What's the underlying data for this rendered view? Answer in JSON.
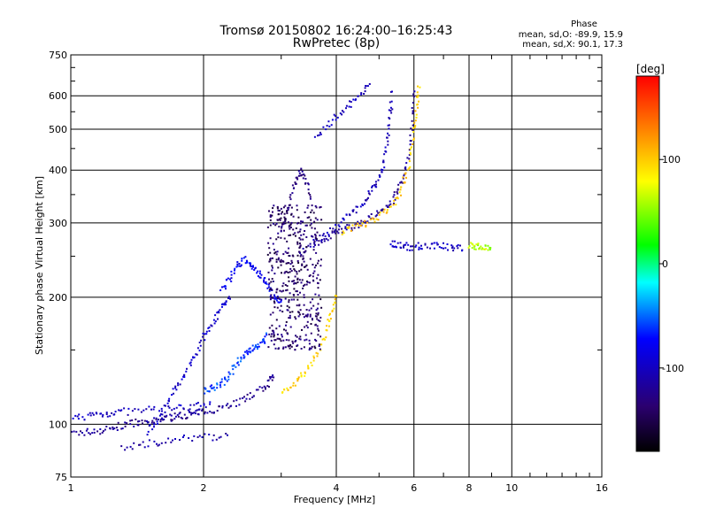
{
  "chart_data": {
    "type": "scatter",
    "title": "Tromsø 20150802 16:24:00–16:25:43",
    "subtitle": "RwPretec (8p)",
    "xlabel": "Frequency [MHz]",
    "ylabel": "Stationary phase Virtual Height [km]",
    "x_scale": "log",
    "y_scale": "log",
    "xlim": [
      1,
      16
    ],
    "ylim": [
      75,
      750
    ],
    "x_ticks": [
      1,
      2,
      4,
      6,
      8,
      10,
      16
    ],
    "x_tick_labels": [
      "1",
      "2",
      "4",
      "6",
      "8",
      "10",
      "16"
    ],
    "y_ticks": [
      75,
      100,
      200,
      300,
      400,
      500,
      600,
      750
    ],
    "y_tick_labels": [
      "75",
      "100",
      "200",
      "300",
      "400",
      "500",
      "600",
      "750"
    ],
    "grid": true,
    "colorbar": {
      "label": "[deg]",
      "range": [
        -180,
        180
      ],
      "ticks": [
        100,
        0,
        -100
      ],
      "tick_labels": [
        "100",
        "0",
        "-100"
      ],
      "stops": [
        "#000000",
        "#2b006f",
        "#0000ff",
        "#00ffff",
        "#00ff00",
        "#ffff00",
        "#ff8000",
        "#ff0000"
      ]
    },
    "legend": {
      "title": "Phase",
      "o_mode": "mean, sd,O: -89.9, 15.9",
      "x_mode": "mean, sd,X:  90.1, 17.3"
    },
    "traces": [
      {
        "name": "",
        "points": [
          [
            1.0,
            95
          ],
          [
            1.1,
            96
          ],
          [
            1.2,
            97
          ],
          [
            1.3,
            99
          ],
          [
            1.4,
            101
          ],
          [
            1.5,
            100
          ],
          [
            1.6,
            103
          ],
          [
            1.7,
            104
          ],
          [
            1.8,
            105
          ],
          [
            1.9,
            106
          ],
          [
            2.0,
            107
          ],
          [
            2.2,
            110
          ],
          [
            2.4,
            113
          ],
          [
            2.6,
            118
          ],
          [
            2.8,
            124
          ],
          [
            2.9,
            130
          ]
        ],
        "phase": -120
      },
      {
        "name": "",
        "points": [
          [
            1.0,
            103
          ],
          [
            1.1,
            105
          ],
          [
            1.2,
            106
          ],
          [
            1.3,
            107
          ],
          [
            1.5,
            108
          ],
          [
            1.7,
            109
          ],
          [
            1.9,
            110
          ],
          [
            2.1,
            111
          ]
        ],
        "phase": -100
      },
      {
        "name": "",
        "points": [
          [
            1.3,
            88
          ],
          [
            1.5,
            90
          ],
          [
            1.7,
            92
          ],
          [
            2.0,
            93
          ],
          [
            2.3,
            94
          ]
        ],
        "phase": -110
      },
      {
        "name": "",
        "points": [
          [
            1.5,
            96
          ],
          [
            1.6,
            105
          ],
          [
            1.7,
            118
          ],
          [
            1.8,
            130
          ],
          [
            1.9,
            145
          ],
          [
            2.0,
            160
          ],
          [
            2.1,
            175
          ],
          [
            2.2,
            190
          ],
          [
            2.3,
            200
          ]
        ],
        "phase": -95
      },
      {
        "name": "",
        "points": [
          [
            2.2,
            210
          ],
          [
            2.3,
            220
          ],
          [
            2.4,
            240
          ],
          [
            2.5,
            245
          ],
          [
            2.6,
            235
          ],
          [
            2.7,
            225
          ],
          [
            2.8,
            210
          ],
          [
            2.9,
            200
          ],
          [
            3.0,
            195
          ]
        ],
        "phase": -80
      },
      {
        "name": "",
        "points": [
          [
            2.0,
            120
          ],
          [
            2.1,
            122
          ],
          [
            2.2,
            125
          ],
          [
            2.3,
            132
          ],
          [
            2.4,
            140
          ],
          [
            2.5,
            148
          ],
          [
            2.6,
            152
          ],
          [
            2.7,
            155
          ],
          [
            2.8,
            162
          ]
        ],
        "phase": -60
      },
      {
        "name": "",
        "points": [
          [
            3.0,
            120
          ],
          [
            3.2,
            125
          ],
          [
            3.4,
            132
          ],
          [
            3.6,
            145
          ],
          [
            3.8,
            165
          ],
          [
            3.9,
            185
          ],
          [
            4.0,
            205
          ]
        ],
        "phase": 95
      },
      {
        "name": "",
        "points": [
          [
            3.3,
            255
          ],
          [
            3.6,
            270
          ],
          [
            3.9,
            282
          ],
          [
            4.2,
            290
          ],
          [
            4.5,
            298
          ],
          [
            4.8,
            308
          ],
          [
            5.1,
            320
          ],
          [
            5.4,
            340
          ],
          [
            5.6,
            370
          ],
          [
            5.8,
            420
          ],
          [
            5.95,
            520
          ],
          [
            6.0,
            630
          ]
        ],
        "phase": -120
      },
      {
        "name": "",
        "points": [
          [
            3.5,
            268
          ],
          [
            3.8,
            282
          ],
          [
            4.1,
            300
          ],
          [
            4.4,
            320
          ],
          [
            4.7,
            345
          ],
          [
            4.9,
            370
          ],
          [
            5.1,
            400
          ],
          [
            5.2,
            460
          ],
          [
            5.3,
            530
          ],
          [
            5.35,
            620
          ]
        ],
        "phase": -105
      },
      {
        "name": "",
        "points": [
          [
            4.1,
            285
          ],
          [
            4.5,
            295
          ],
          [
            4.9,
            305
          ],
          [
            5.3,
            325
          ],
          [
            5.6,
            355
          ],
          [
            5.8,
            400
          ],
          [
            6.0,
            480
          ],
          [
            6.1,
            560
          ],
          [
            6.15,
            640
          ]
        ],
        "phase": 100
      },
      {
        "name": "",
        "points": [
          [
            3.0,
            280
          ],
          [
            3.1,
            320
          ],
          [
            3.2,
            360
          ],
          [
            3.3,
            400
          ],
          [
            3.4,
            380
          ],
          [
            3.5,
            340
          ]
        ],
        "phase": -130
      },
      {
        "name": "",
        "points": [
          [
            3.6,
            480
          ],
          [
            3.9,
            520
          ],
          [
            4.2,
            560
          ],
          [
            4.5,
            600
          ],
          [
            4.8,
            640
          ]
        ],
        "phase": -100
      },
      {
        "name": "",
        "points": [
          [
            5.3,
            270
          ],
          [
            5.6,
            265
          ],
          [
            5.9,
            263
          ],
          [
            6.3,
            265
          ],
          [
            6.8,
            264
          ],
          [
            7.3,
            263
          ],
          [
            7.8,
            263
          ]
        ],
        "phase": -100
      },
      {
        "name": "",
        "points": [
          [
            8.0,
            265
          ],
          [
            8.3,
            264
          ],
          [
            8.6,
            262
          ],
          [
            9.0,
            262
          ]
        ],
        "phase": 60
      }
    ],
    "band": {
      "x_range": [
        2.8,
        3.7
      ],
      "y_range": [
        150,
        330
      ],
      "phase": -140
    }
  }
}
